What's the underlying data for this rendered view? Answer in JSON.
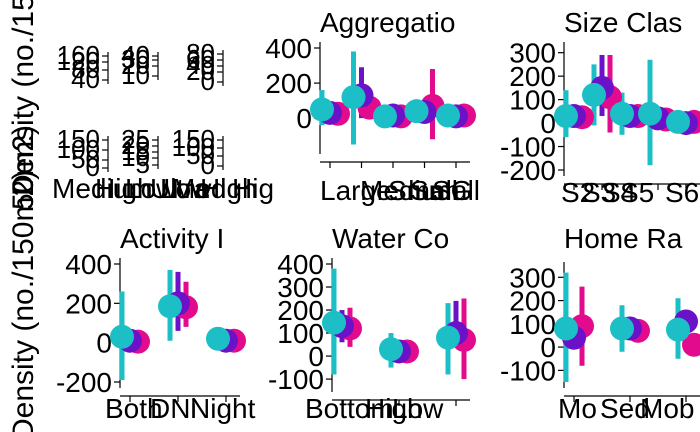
{
  "figure": {
    "y_axis_label_top": "Density (no./15",
    "y_axis_label_mid": "50m2)",
    "y_axis_label_bottom": "Density (no./150m2)"
  },
  "colors": {
    "teal": "#1dbfc6",
    "purple": "#6b12c9",
    "magenta": "#e20b8e"
  },
  "chart_data": [
    {
      "type": "scatter",
      "title": "",
      "note": "overlapping axes, unreadable",
      "top_tick_labels": [
        "160",
        "120",
        "80",
        "40",
        "40",
        "30",
        "20",
        "10",
        "80",
        "60",
        "40",
        "20",
        "0"
      ],
      "bottom_tick_labels": [
        "150",
        "100",
        "50",
        "0",
        "25",
        "20",
        "15",
        "10",
        "5",
        "150",
        "100",
        "50",
        "0"
      ],
      "categories": [
        "Medium",
        "High",
        "Low",
        "Ultra",
        "Low",
        "Med",
        "High",
        "Hig"
      ]
    },
    {
      "type": "scatter",
      "title": "Aggregatio",
      "categories": [
        "Large",
        "Medium",
        "Small",
        "Small",
        "SG"
      ],
      "ylim": [
        -170,
        400
      ],
      "yticks": [
        0,
        200,
        400
      ],
      "series": [
        {
          "name": "",
          "color": "teal",
          "values": [
            50,
            120,
            10,
            40,
            15
          ],
          "lower": [
            -40,
            -150,
            -10,
            -10,
            -5
          ],
          "upper": [
            160,
            380,
            30,
            90,
            35
          ]
        },
        {
          "name": "",
          "color": "purple",
          "values": [
            30,
            130,
            15,
            35,
            10
          ],
          "lower": [
            0,
            0,
            5,
            5,
            0
          ],
          "upper": [
            80,
            290,
            25,
            90,
            25
          ]
        },
        {
          "name": "",
          "color": "magenta",
          "values": [
            25,
            60,
            10,
            70,
            15
          ],
          "lower": [
            5,
            20,
            0,
            -120,
            5
          ],
          "upper": [
            50,
            110,
            20,
            280,
            25
          ]
        }
      ]
    },
    {
      "type": "scatter",
      "title": "Size Clas",
      "categories": [
        "S2",
        "S3",
        "S4",
        "S5",
        "S6"
      ],
      "ylim": [
        -200,
        320
      ],
      "yticks": [
        -200,
        -100,
        0,
        100,
        200,
        300
      ],
      "series": [
        {
          "name": "",
          "color": "teal",
          "values": [
            30,
            120,
            40,
            40,
            5
          ],
          "lower": [
            -60,
            -10,
            -50,
            -180,
            -10
          ],
          "upper": [
            140,
            250,
            130,
            270,
            20
          ]
        },
        {
          "name": "",
          "color": "purple",
          "values": [
            30,
            150,
            30,
            20,
            0
          ],
          "lower": [
            0,
            30,
            0,
            0,
            -5
          ],
          "upper": [
            60,
            290,
            60,
            50,
            10
          ]
        },
        {
          "name": "",
          "color": "magenta",
          "values": [
            25,
            110,
            30,
            15,
            5
          ],
          "lower": [
            10,
            -40,
            10,
            5,
            0
          ],
          "upper": [
            40,
            290,
            50,
            25,
            10
          ]
        }
      ]
    },
    {
      "type": "scatter",
      "title": "Activity I",
      "categories": [
        "Both",
        "Day",
        "Night"
      ],
      "category_labels": [
        "Both",
        "DNi",
        "Night"
      ],
      "ylim": [
        -200,
        400
      ],
      "yticks": [
        -200,
        0,
        200,
        400
      ],
      "series": [
        {
          "name": "",
          "color": "teal",
          "values": [
            30,
            185,
            20
          ],
          "lower": [
            -190,
            10,
            0
          ],
          "upper": [
            260,
            370,
            40
          ]
        },
        {
          "name": "",
          "color": "purple",
          "values": [
            10,
            200,
            10
          ],
          "lower": [
            0,
            60,
            0
          ],
          "upper": [
            30,
            360,
            20
          ]
        },
        {
          "name": "",
          "color": "magenta",
          "values": [
            5,
            180,
            10
          ],
          "lower": [
            0,
            80,
            0
          ],
          "upper": [
            20,
            310,
            20
          ]
        }
      ]
    },
    {
      "type": "scatter",
      "title": "Water Co",
      "categories": [
        "Bottom",
        "High",
        "Low"
      ],
      "ylim": [
        -130,
        400
      ],
      "yticks": [
        -100,
        0,
        100,
        200,
        300,
        400
      ],
      "series": [
        {
          "name": "",
          "color": "teal",
          "values": [
            145,
            30,
            80
          ],
          "lower": [
            -80,
            -50,
            -80
          ],
          "upper": [
            380,
            100,
            230
          ]
        },
        {
          "name": "",
          "color": "purple",
          "values": [
            130,
            20,
            100
          ],
          "lower": [
            60,
            0,
            40
          ],
          "upper": [
            200,
            50,
            240
          ]
        },
        {
          "name": "",
          "color": "magenta",
          "values": [
            120,
            20,
            70
          ],
          "lower": [
            40,
            0,
            -100
          ],
          "upper": [
            210,
            40,
            250
          ]
        }
      ]
    },
    {
      "type": "scatter",
      "title": "Home Ra",
      "categories": [
        "Mob",
        "Sed",
        "Mob"
      ],
      "category_labels": [
        "Mo",
        "Sed",
        "Mob"
      ],
      "ylim": [
        -150,
        340
      ],
      "yticks": [
        -100,
        0,
        100,
        200,
        300
      ],
      "series": [
        {
          "name": "",
          "color": "teal",
          "values": [
            80,
            80,
            75
          ],
          "lower": [
            -150,
            -20,
            -50
          ],
          "upper": [
            320,
            180,
            210
          ]
        },
        {
          "name": "",
          "color": "purple",
          "values": [
            40,
            80,
            110
          ],
          "lower": [
            0,
            40,
            60
          ],
          "upper": [
            100,
            130,
            160
          ]
        },
        {
          "name": "",
          "color": "magenta",
          "values": [
            90,
            70,
            10
          ],
          "lower": [
            -80,
            20,
            -30
          ],
          "upper": [
            260,
            120,
            60
          ]
        }
      ]
    }
  ]
}
